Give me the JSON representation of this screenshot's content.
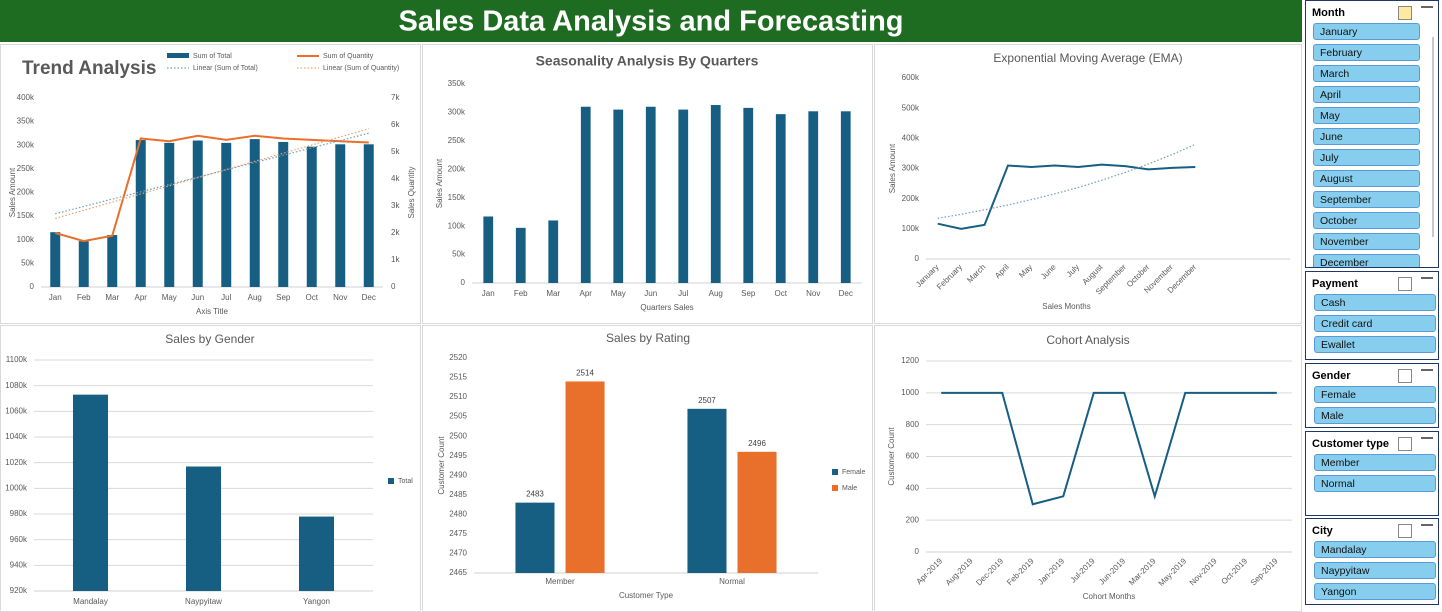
{
  "header": {
    "title": "Sales Data Analysis and Forecasting"
  },
  "chart_data": [
    {
      "type": "combo",
      "title": "Trend Analysis",
      "xlabel": "Axis Title",
      "ylabel": "Sales Amount",
      "y2label": "Sales Quantity",
      "categories": [
        "Jan",
        "Feb",
        "Mar",
        "Apr",
        "May",
        "Jun",
        "Jul",
        "Aug",
        "Sep",
        "Oct",
        "Nov",
        "Dec"
      ],
      "series": [
        {
          "name": "Sum of Total",
          "mark": "bar",
          "color": "#175e83",
          "values": [
            116000,
            97000,
            110000,
            311000,
            305000,
            310000,
            305000,
            313000,
            307000,
            297000,
            302000,
            302000
          ]
        },
        {
          "name": "Sum of Quantity",
          "mark": "line",
          "axis": "y2",
          "color": "#e8702a",
          "values": [
            2000,
            1700,
            1900,
            5500,
            5400,
            5600,
            5450,
            5600,
            5500,
            5450,
            5400,
            5350
          ]
        },
        {
          "name": "Linear (Sum of Total)",
          "mark": "line",
          "dashed": true,
          "color": "#6d9ec0",
          "values": [
            155000,
            170500,
            186000,
            201500,
            217000,
            232500,
            248000,
            263500,
            279000,
            294500,
            310000,
            325500
          ]
        },
        {
          "name": "Linear (Sum of Quantity)",
          "mark": "line",
          "axis": "y2",
          "dashed": true,
          "color": "#f0a06b",
          "values": [
            2540,
            2842,
            3144,
            3446,
            3748,
            4050,
            4352,
            4654,
            4956,
            5258,
            5560,
            5862
          ]
        }
      ],
      "ylim": [
        0,
        400000
      ],
      "yticks": [
        0,
        {
          "value": 50000,
          "label": "50k"
        },
        {
          "value": 100000,
          "label": "100k"
        },
        {
          "value": 150000,
          "label": "150k"
        },
        {
          "value": 200000,
          "label": "200k"
        },
        {
          "value": 250000,
          "label": "250k"
        },
        {
          "value": 300000,
          "label": "300k"
        },
        {
          "value": 350000,
          "label": "350k"
        },
        {
          "value": 400000,
          "label": "400k"
        }
      ],
      "y2lim": [
        0,
        7000
      ],
      "y2ticks": [
        0,
        {
          "value": 1000,
          "label": "1k"
        },
        {
          "value": 2000,
          "label": "2k"
        },
        {
          "value": 3000,
          "label": "3k"
        },
        {
          "value": 4000,
          "label": "4k"
        },
        {
          "value": 5000,
          "label": "5k"
        },
        {
          "value": 6000,
          "label": "6k"
        },
        {
          "value": 7000,
          "label": "7k"
        }
      ],
      "grid": false,
      "legend": "top"
    },
    {
      "type": "bar",
      "title": "Seasonality Analysis By Quarters",
      "xlabel": "Quarters Sales",
      "ylabel": "Sales Amount",
      "categories": [
        "Jan",
        "Feb",
        "Mar",
        "Apr",
        "May",
        "Jun",
        "Jul",
        "Aug",
        "Sep",
        "Oct",
        "Nov",
        "Dec"
      ],
      "values": [
        117000,
        97000,
        110000,
        310000,
        305000,
        310000,
        305000,
        313000,
        308000,
        297000,
        302000,
        302000
      ],
      "color": "#175e83",
      "ylim": [
        0,
        350000
      ],
      "yticks": [
        0,
        {
          "value": 50000,
          "label": "50k"
        },
        {
          "value": 100000,
          "label": "100k"
        },
        {
          "value": 150000,
          "label": "150k"
        },
        {
          "value": 200000,
          "label": "200k"
        },
        {
          "value": 250000,
          "label": "250k"
        },
        {
          "value": 300000,
          "label": "300k"
        },
        {
          "value": 350000,
          "label": "350k"
        }
      ],
      "grid": false
    },
    {
      "type": "line",
      "title": "Exponential Moving Average (EMA)",
      "xlabel": "Sales Months",
      "ylabel": "Sales Amount",
      "categories": [
        "January",
        "February",
        "March",
        "April",
        "May",
        "June",
        "July",
        "August",
        "September",
        "October",
        "November",
        "December"
      ],
      "series": [
        {
          "color": "#175e83",
          "values": [
            117000,
            100000,
            113000,
            310000,
            305000,
            310000,
            305000,
            313000,
            308000,
            297000,
            302000,
            305000
          ]
        },
        {
          "color": "#6d9ec0",
          "dashed": true,
          "values": [
            135000,
            148000,
            163000,
            179000,
            197000,
            216000,
            237000,
            261000,
            287000,
            315000,
            346000,
            380000
          ]
        }
      ],
      "ylim": [
        0,
        600000
      ],
      "yticks": [
        0,
        {
          "value": 100000,
          "label": "100k"
        },
        {
          "value": 200000,
          "label": "200k"
        },
        {
          "value": 300000,
          "label": "300k"
        },
        {
          "value": 400000,
          "label": "400k"
        },
        {
          "value": 500000,
          "label": "500k"
        },
        {
          "value": 600000,
          "label": "600k"
        }
      ],
      "grid": false
    },
    {
      "type": "bar",
      "title": "Sales by Gender",
      "categories": [
        "Mandalay",
        "Naypyitaw",
        "Yangon"
      ],
      "series": [
        {
          "name": "Total",
          "color": "#175e83",
          "values": [
            1073000,
            1017000,
            978000
          ]
        }
      ],
      "ylim": [
        920000,
        1100000
      ],
      "yticks": [
        {
          "value": 920000,
          "label": "920k"
        },
        {
          "value": 940000,
          "label": "940k"
        },
        {
          "value": 960000,
          "label": "960k"
        },
        {
          "value": 980000,
          "label": "980k"
        },
        {
          "value": 1000000,
          "label": "1000k"
        },
        {
          "value": 1020000,
          "label": "1020k"
        },
        {
          "value": 1040000,
          "label": "1040k"
        },
        {
          "value": 1060000,
          "label": "1060k"
        },
        {
          "value": 1080000,
          "label": "1080k"
        },
        {
          "value": 1100000,
          "label": "1100k"
        }
      ],
      "grid": true,
      "legend": "right"
    },
    {
      "type": "bar",
      "title": "Sales by Rating",
      "xlabel": "Customer Type",
      "ylabel": "Customer Count",
      "categories": [
        "Member",
        "Normal"
      ],
      "series": [
        {
          "name": "Female",
          "color": "#175e83",
          "values": [
            2483,
            2507
          ]
        },
        {
          "name": "Male",
          "color": "#e8702a",
          "values": [
            2514,
            2496
          ]
        }
      ],
      "ylim": [
        2465,
        2520
      ],
      "yticks": [
        2465,
        2470,
        2475,
        2480,
        2485,
        2490,
        2495,
        2500,
        2505,
        2510,
        2515,
        2520
      ],
      "grid": false,
      "legend": "right",
      "data_labels": true
    },
    {
      "type": "line",
      "title": "Cohort Analysis",
      "xlabel": "Cohort Months",
      "ylabel": "Customer Count",
      "categories": [
        "Apr-2019",
        "Aug-2019",
        "Dec-2019",
        "Feb-2019",
        "Jan-2019",
        "Jul-2019",
        "Jun-2019",
        "Mar-2019",
        "May-2019",
        "Nov-2019",
        "Oct-2019",
        "Sep-2019"
      ],
      "values": [
        1000,
        1000,
        1000,
        300,
        350,
        1000,
        1000,
        350,
        1000,
        1000,
        1000,
        1000
      ],
      "color": "#175e83",
      "ylim": [
        0,
        1200
      ],
      "yticks": [
        0,
        200,
        400,
        600,
        800,
        1000,
        1200
      ],
      "grid": true
    }
  ],
  "slicers": [
    {
      "title": "Month",
      "items": [
        "January",
        "February",
        "March",
        "April",
        "May",
        "June",
        "July",
        "August",
        "September",
        "October",
        "November",
        "December"
      ]
    },
    {
      "title": "Payment",
      "items": [
        "Cash",
        "Credit card",
        "Ewallet"
      ]
    },
    {
      "title": "Gender",
      "items": [
        "Female",
        "Male"
      ]
    },
    {
      "title": "Customer type",
      "items": [
        "Member",
        "Normal"
      ]
    },
    {
      "title": "City",
      "items": [
        "Mandalay",
        "Naypyitaw",
        "Yangon"
      ]
    }
  ]
}
